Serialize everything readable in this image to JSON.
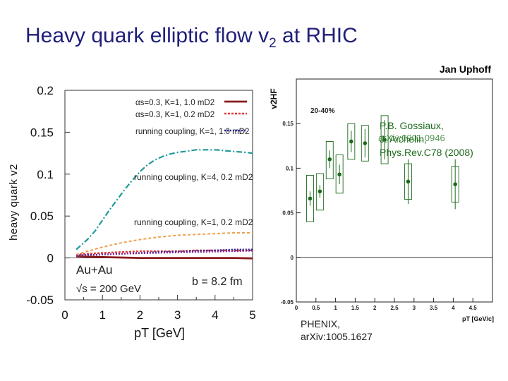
{
  "slide": {
    "title_main": "Heavy quark elliptic flow v",
    "title_sub": "2",
    "title_tail": " at RHIC",
    "author": "Jan Uphoff"
  },
  "references": {
    "gossiaux_line1": "P.B. Gossiaux,",
    "gossiaux_line2": "J. Aichelin,",
    "gossiaux_line3": "Phys.Rev.C78 (2008)",
    "gossiaux_arxiv": "arXiv:0901.0946",
    "phenix_line1": "PHENIX,",
    "phenix_line2": "arXiv:1005.1627"
  },
  "colors": {
    "title": "#1f1f7a",
    "alpha_K1_1mD": "#8b1a1a",
    "alpha_K1_02mD": "#e03a3a",
    "running_K1_1mD": "#2a2a9e",
    "running_K4_02mD": "#1f9a9a",
    "running_K1_02mD": "#f0a050",
    "purple": "#8a2a9a",
    "phenix_points": "#1c6a1c"
  },
  "chart_data": [
    {
      "type": "line",
      "ylabel": "heavy quark v2",
      "xlabel": "pT [GeV]",
      "xlim": [
        0,
        5
      ],
      "ylim": [
        -0.05,
        0.2
      ],
      "x_ticks": [
        "0",
        "1",
        "2",
        "3",
        "4",
        "5"
      ],
      "y_ticks": [
        "-0.05",
        "0",
        "0.05",
        "0.1",
        "0.15",
        "0.2"
      ],
      "legend_labels": [
        "αs=0.3, K=1, 1.0 mD2",
        "αs=0.3, K=1, 0.2 mD2",
        "running coupling, K=1, 1.0 mD2"
      ],
      "annotations": [
        "running coupling, K=4, 0.2 mD2",
        "running coupling, K=1, 0.2 mD2",
        "Au+Au",
        "√s = 200 GeV",
        "b = 8.2 fm"
      ],
      "series": [
        {
          "name": "αs=0.3, K=1, 1.0 mD2",
          "x": [
            0.3,
            0.6,
            1,
            1.5,
            2,
            2.5,
            3,
            3.5,
            4,
            4.5,
            5
          ],
          "y": [
            0.002,
            0.0015,
            0.001,
            0.0005,
            0,
            0,
            0,
            0,
            0,
            0,
            -0.0005
          ]
        },
        {
          "name": "αs=0.3, K=1, 0.2 mD2",
          "x": [
            0.3,
            0.6,
            1,
            1.5,
            2,
            2.5,
            3,
            3.5,
            4,
            4.5,
            5
          ],
          "y": [
            0.004,
            0.005,
            0.006,
            0.007,
            0.008,
            0.008,
            0.008,
            0.009,
            0.009,
            0.009,
            0.009
          ]
        },
        {
          "name": "running coupling, K=1, 1.0 mD2",
          "x": [
            0.3,
            0.6,
            1,
            1.5,
            2,
            2.5,
            3,
            3.5,
            4,
            4.5,
            5
          ],
          "y": [
            0.003,
            0.0035,
            0.004,
            0.005,
            0.006,
            0.007,
            0.0075,
            0.0085,
            0.009,
            0.01,
            0.01
          ]
        },
        {
          "name": "running coupling, K=4, 0.2 mD2",
          "x": [
            0.3,
            0.6,
            0.8,
            1,
            1.2,
            1.4,
            1.6,
            1.8,
            2,
            2.2,
            2.4,
            2.6,
            2.8,
            3,
            3.2,
            3.5,
            4,
            4.5,
            4.8,
            5
          ],
          "y": [
            0.01,
            0.022,
            0.032,
            0.045,
            0.058,
            0.07,
            0.082,
            0.093,
            0.103,
            0.111,
            0.117,
            0.121,
            0.124,
            0.126,
            0.127,
            0.129,
            0.129,
            0.127,
            0.126,
            0.125
          ]
        },
        {
          "name": "running coupling, K=1, 0.2 mD2",
          "x": [
            0.3,
            0.6,
            1,
            1.5,
            2,
            2.5,
            3,
            3.5,
            4,
            4.5,
            5
          ],
          "y": [
            0.004,
            0.008,
            0.013,
            0.018,
            0.022,
            0.025,
            0.027,
            0.028,
            0.029,
            0.03,
            0.03
          ]
        },
        {
          "x": [
            0.3,
            0.6,
            1,
            1.5,
            2,
            2.5,
            3,
            3.5,
            4,
            4.5,
            5
          ],
          "y": [
            0.002,
            0.003,
            0.004,
            0.005,
            0.0055,
            0.006,
            0.0065,
            0.007,
            0.0075,
            0.008,
            0.0085
          ]
        }
      ]
    },
    {
      "type": "scatter",
      "ylabel": "v2HF",
      "xlabel": "pT [GeV/c]",
      "xlim": [
        0,
        5
      ],
      "ylim": [
        -0.05,
        0.2
      ],
      "x_ticks": [
        "0",
        "0.5",
        "1",
        "1.5",
        "2",
        "2.5",
        "3",
        "3.5",
        "4",
        "4.5",
        "5"
      ],
      "y_ticks": [
        "-0.05",
        "0",
        "0.05",
        "0.1",
        "0.15"
      ],
      "centrality": "20-40%",
      "points": [
        {
          "x": 0.35,
          "y": 0.066,
          "stat_lo": 0.058,
          "stat_hi": 0.074,
          "sys_lo": 0.04,
          "sys_hi": 0.092
        },
        {
          "x": 0.6,
          "y": 0.074,
          "stat_lo": 0.067,
          "stat_hi": 0.081,
          "sys_lo": 0.053,
          "sys_hi": 0.094
        },
        {
          "x": 0.85,
          "y": 0.11,
          "stat_lo": 0.1,
          "stat_hi": 0.12,
          "sys_lo": 0.088,
          "sys_hi": 0.13
        },
        {
          "x": 1.1,
          "y": 0.093,
          "stat_lo": 0.082,
          "stat_hi": 0.104,
          "sys_lo": 0.072,
          "sys_hi": 0.115
        },
        {
          "x": 1.4,
          "y": 0.13,
          "stat_lo": 0.118,
          "stat_hi": 0.142,
          "sys_lo": 0.11,
          "sys_hi": 0.15
        },
        {
          "x": 1.75,
          "y": 0.128,
          "stat_lo": 0.112,
          "stat_hi": 0.144,
          "sys_lo": 0.108,
          "sys_hi": 0.148
        },
        {
          "x": 2.25,
          "y": 0.132,
          "stat_lo": 0.11,
          "stat_hi": 0.154,
          "sys_lo": 0.105,
          "sys_hi": 0.159
        },
        {
          "x": 2.85,
          "y": 0.085,
          "stat_lo": 0.06,
          "stat_hi": 0.11,
          "sys_lo": 0.065,
          "sys_hi": 0.105
        },
        {
          "x": 4.05,
          "y": 0.082,
          "stat_lo": 0.054,
          "stat_hi": 0.11,
          "sys_lo": 0.062,
          "sys_hi": 0.102
        }
      ]
    }
  ]
}
